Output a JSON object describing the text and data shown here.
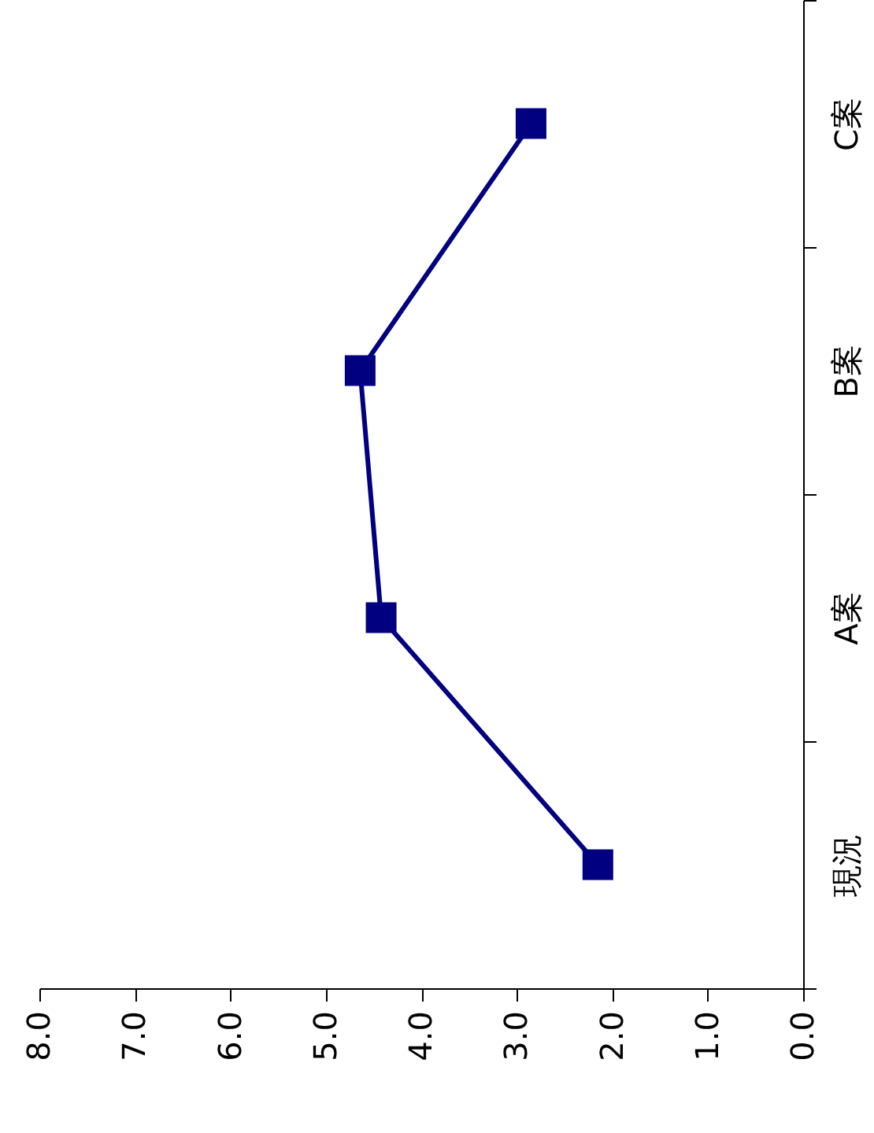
{
  "chart_data": {
    "type": "line",
    "orientation": "horizontal",
    "categories": [
      "C案",
      "B案",
      "A案",
      "現況"
    ],
    "series": [
      {
        "color": "#000080",
        "values": [
          2.85,
          4.64,
          4.42,
          2.15
        ]
      }
    ],
    "xlim": [
      8,
      0
    ],
    "xticks": [
      {
        "value": 8,
        "label": "8.0"
      },
      {
        "value": 7,
        "label": "7.0"
      },
      {
        "value": 6,
        "label": "6.0"
      },
      {
        "value": 5,
        "label": "5.0"
      },
      {
        "value": 4,
        "label": "4.0"
      },
      {
        "value": 3,
        "label": "3.0"
      },
      {
        "value": 2,
        "label": "2.0"
      },
      {
        "value": 1,
        "label": "1.0"
      },
      {
        "value": 0,
        "label": "0.0"
      }
    ],
    "marker": "square",
    "line_style": "solid",
    "grid": false
  }
}
